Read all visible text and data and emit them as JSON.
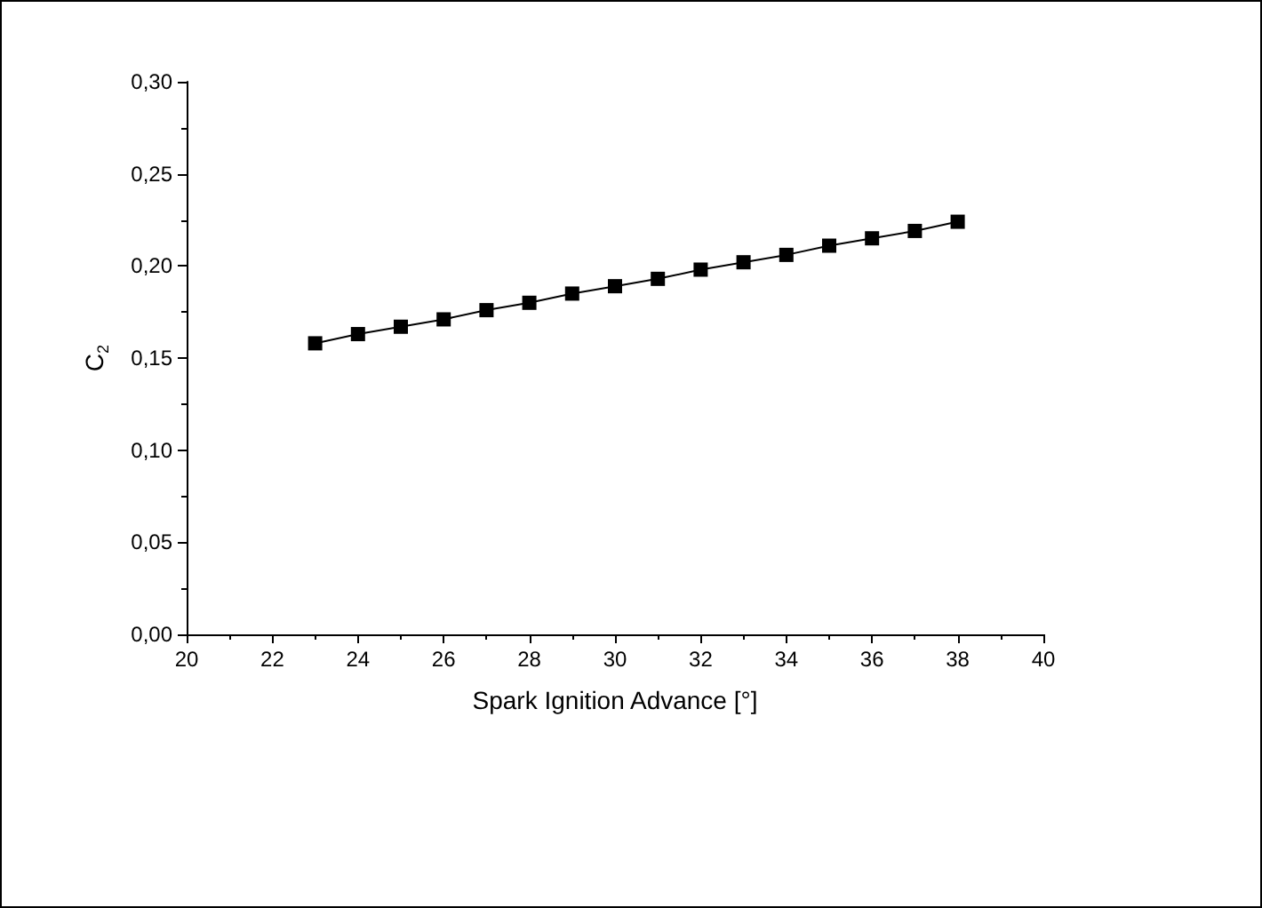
{
  "chart_data": {
    "type": "line",
    "xlabel": "Spark Ignition Advance [°]",
    "ylabel": "C$_{2}$",
    "x": [
      23,
      24,
      25,
      26,
      27,
      28,
      29,
      30,
      31,
      32,
      33,
      34,
      35,
      36,
      37,
      38
    ],
    "series": [
      {
        "color": "#000000",
        "values": [
          0.158,
          0.163,
          0.167,
          0.171,
          0.176,
          0.18,
          0.185,
          0.189,
          0.193,
          0.198,
          0.202,
          0.206,
          0.211,
          0.215,
          0.219,
          0.224
        ]
      }
    ],
    "xlim": [
      20,
      40
    ],
    "xticks": [
      20,
      22,
      24,
      26,
      28,
      30,
      32,
      34,
      36,
      38,
      40
    ],
    "ylim": [
      0,
      0.3
    ],
    "yticks": [
      {
        "value": 0,
        "label": "0,00"
      },
      {
        "value": 0.05,
        "label": "0,05"
      },
      {
        "value": 0.1,
        "label": "0,10"
      },
      {
        "value": 0.15,
        "label": "0,15"
      },
      {
        "value": 0.2,
        "label": "0,20"
      },
      {
        "value": 0.25,
        "label": "0,25"
      },
      {
        "value": 0.3,
        "label": "0,30"
      }
    ],
    "marker": "square",
    "line_style": "solid"
  }
}
